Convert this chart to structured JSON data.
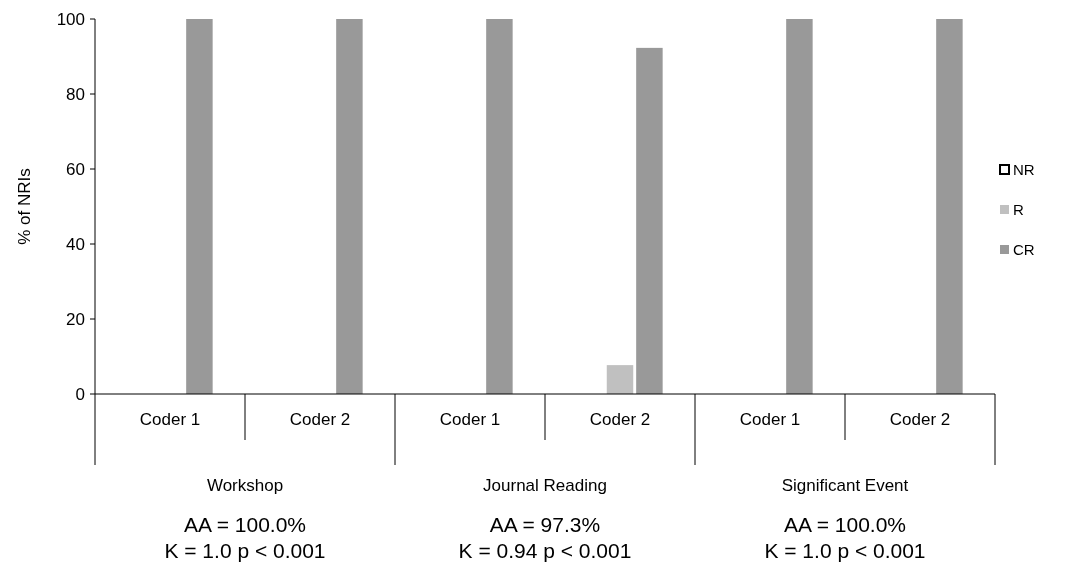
{
  "chart_data": {
    "type": "bar",
    "ylabel": "% of NRIs",
    "categories": [
      "Coder 1",
      "Coder 2",
      "Coder 1",
      "Coder 2",
      "Coder 1",
      "Coder 2"
    ],
    "series": [
      {
        "name": "NR",
        "color": "#ffffff",
        "values": [
          0,
          0,
          0,
          0,
          0,
          0
        ]
      },
      {
        "name": "R",
        "color": "#c0c0c0",
        "values": [
          0,
          0,
          0,
          7.7,
          0,
          0
        ]
      },
      {
        "name": "CR",
        "color": "#999999",
        "values": [
          100,
          100,
          100,
          92.3,
          100,
          100
        ]
      }
    ],
    "ylim": [
      0,
      100
    ],
    "yticks": [
      0,
      20,
      40,
      60,
      80,
      100
    ],
    "grid": false,
    "legend": "right",
    "annotations": [
      "Workshop",
      "Journal Reading",
      "Significant Event",
      "AA = 100.0%",
      "AA = 97.3%",
      "AA = 100.0%",
      "K = 1.0 p < 0.001",
      "K = 0.94 p < 0.001",
      "K = 1.0  p < 0.001"
    ]
  }
}
